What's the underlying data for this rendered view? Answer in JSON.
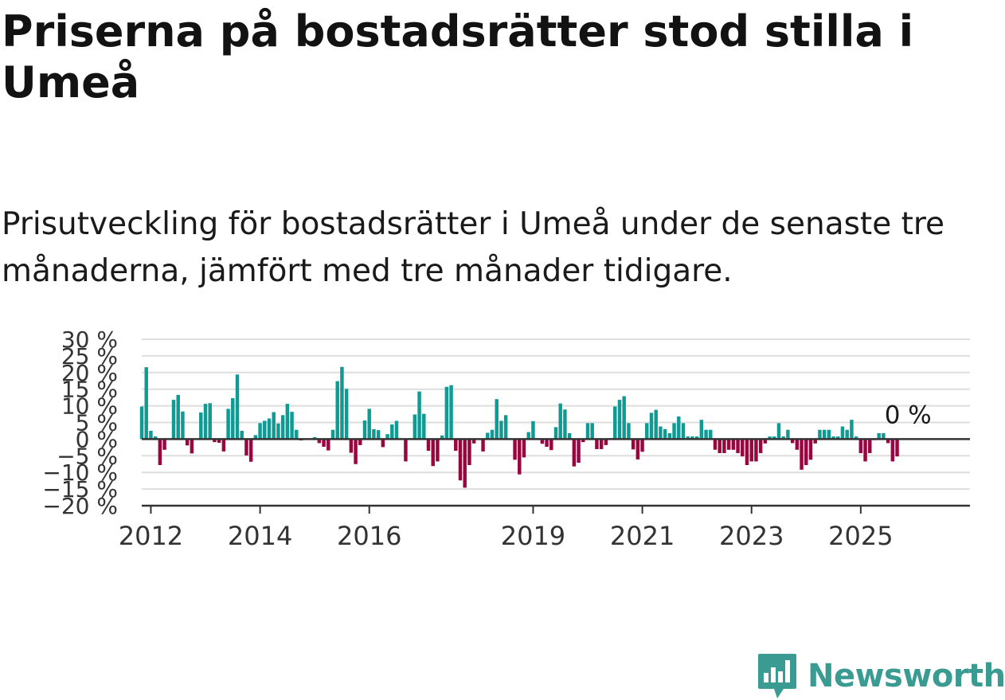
{
  "title": "Priserna på bostadsrätter stod stilla i Umeå",
  "subtitle": "Prisutveckling för bostadsrätter i Umeå under de senaste tre månaderna, jämfört med tre månader tidigare.",
  "brand": {
    "name": "Newsworthy",
    "color": "#3a9b93"
  },
  "colors": {
    "positive": "#0f9b94",
    "negative": "#99063f",
    "grid": "#dedede",
    "axis": "#333333"
  },
  "chart_data": {
    "type": "bar",
    "ylim": [
      -20,
      30
    ],
    "y_ticks": [
      30,
      25,
      20,
      15,
      10,
      5,
      0,
      -5,
      -10,
      -15,
      -20
    ],
    "y_tick_labels": [
      "30 %",
      "25 %",
      "20 %",
      "15 %",
      "10 %",
      "5 %",
      "0 %",
      "−5 %",
      "−10 %",
      "−15 %",
      "−20 %"
    ],
    "x_tick_labels": [
      "2012",
      "2014",
      "2016",
      "2019",
      "2021",
      "2023",
      "2025"
    ],
    "x_tick_years": [
      2012,
      2014,
      2016,
      2019,
      2021,
      2023,
      2025
    ],
    "x_start": 2011.833,
    "x_end": 2027.0,
    "last_value_label": "0 %",
    "series": [
      {
        "values": [
          9.8,
          21.6,
          2.5,
          0.8,
          -7.8,
          -3.2,
          -0.2,
          11.8,
          13.3,
          8.3,
          -1.9,
          -4.3,
          0.1,
          8.0,
          10.6,
          10.8,
          -0.9,
          -1.1,
          -3.7,
          9.1,
          12.3,
          19.4,
          2.5,
          -4.9,
          -6.8,
          1.2,
          4.8,
          5.5,
          6.2,
          8.1,
          4.7,
          7.2,
          10.6,
          8.2,
          2.8,
          -0.4,
          0.1,
          0.1,
          0.6,
          -1.2,
          -2.3,
          -3.4,
          2.8,
          17.4,
          21.7,
          15.1,
          -4.1,
          -7.5,
          -1.8,
          5.6,
          9.1,
          3.0,
          2.7,
          -2.4,
          1.5,
          4.4,
          5.5,
          0.1,
          -6.7,
          0.1,
          7.4,
          14.3,
          7.6,
          -3.5,
          -8.1,
          -6.7,
          1.1,
          15.7,
          16.2,
          -3.5,
          -12.4,
          -14.6,
          -7.8,
          -1.3,
          0.1,
          -3.7,
          1.9,
          2.8,
          12.0,
          5.5,
          7.2,
          0.1,
          -6.2,
          -10.6,
          -5.5,
          2.1,
          5.4,
          0.3,
          -1.4,
          -2.3,
          -3.3,
          3.6,
          10.7,
          8.9,
          1.8,
          -8.2,
          -7.1,
          -0.9,
          4.8,
          4.8,
          -3.0,
          -3.0,
          -1.8,
          0.3,
          9.8,
          11.8,
          12.9,
          4.8,
          -3.1,
          -6.1,
          -3.8,
          4.8,
          7.9,
          8.8,
          3.8,
          3.0,
          1.8,
          4.8,
          6.8,
          4.8,
          0.8,
          0.8,
          0.8,
          5.8,
          2.8,
          2.8,
          -3.2,
          -4.2,
          -4.2,
          -3.2,
          -3.2,
          -4.2,
          -5.2,
          -7.8,
          -6.7,
          -6.7,
          -4.2,
          -1.3,
          0.8,
          0.8,
          4.8,
          0.8,
          2.8,
          -1.2,
          -3.2,
          -9.2,
          -7.8,
          -6.2,
          -1.3,
          2.8,
          2.8,
          2.8,
          0.8,
          0.8,
          3.8,
          2.8,
          5.8,
          0.8,
          -4.2,
          -6.7,
          -4.2,
          -0.3,
          1.8,
          1.8,
          -1.2,
          -6.7,
          -5.2,
          0.0
        ]
      }
    ]
  }
}
